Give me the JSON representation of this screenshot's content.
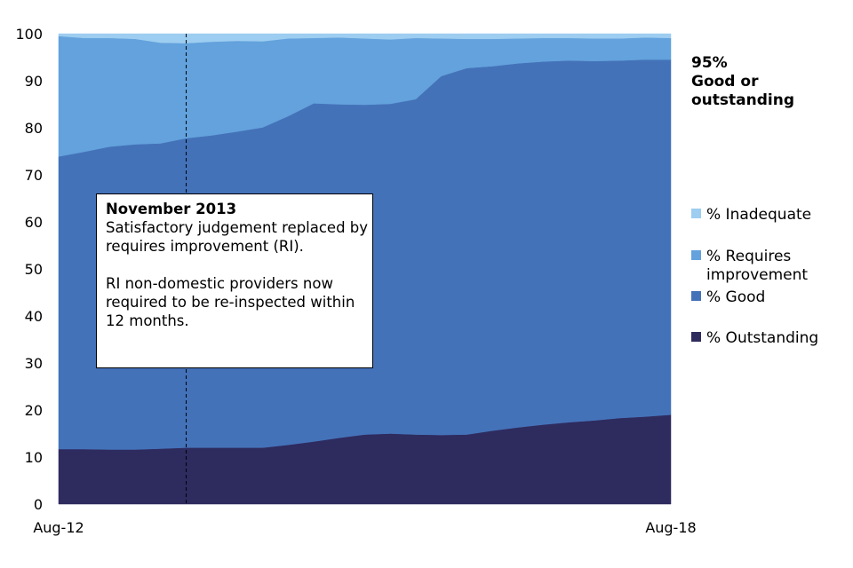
{
  "chart_data": {
    "type": "area",
    "stacked": true,
    "x": [
      "Aug-12",
      "Nov-12",
      "Feb-13",
      "May-13",
      "Aug-13",
      "Nov-13",
      "Feb-14",
      "May-14",
      "Aug-14",
      "Nov-14",
      "Feb-15",
      "May-15",
      "Aug-15",
      "Nov-15",
      "Feb-16",
      "May-16",
      "Aug-16",
      "Nov-16",
      "Feb-17",
      "May-17",
      "Aug-17",
      "Nov-17",
      "Feb-18",
      "May-18",
      "Aug-18"
    ],
    "x_tick_labels": [
      "Aug-12",
      "Aug-18"
    ],
    "ylim": [
      0,
      100
    ],
    "y_ticks": [
      0,
      10,
      20,
      30,
      40,
      50,
      60,
      70,
      80,
      90,
      100
    ],
    "series": [
      {
        "name": "% Outstanding",
        "color": "#2e2b5f",
        "values": [
          11.7,
          11.7,
          11.6,
          11.6,
          11.8,
          12.0,
          12.0,
          12.0,
          12.0,
          12.6,
          13.3,
          14.1,
          14.8,
          15.0,
          14.8,
          14.7,
          14.8,
          15.6,
          16.3,
          16.9,
          17.4,
          17.8,
          18.3,
          18.6,
          19.0
        ]
      },
      {
        "name": "% Good",
        "color": "#4472b9",
        "values": [
          62.2,
          63.2,
          64.4,
          64.9,
          64.9,
          65.8,
          66.4,
          67.2,
          68.1,
          69.9,
          71.9,
          70.9,
          70.1,
          70.1,
          71.3,
          76.3,
          77.9,
          77.5,
          77.4,
          77.2,
          76.9,
          76.4,
          76.0,
          75.9,
          75.5
        ]
      },
      {
        "name": "% Requires improvement",
        "color": "#63a2dc",
        "values": [
          25.6,
          24.2,
          23.1,
          22.4,
          21.4,
          20.2,
          19.9,
          19.3,
          18.3,
          16.5,
          13.9,
          14.2,
          14.1,
          13.7,
          13.0,
          8.0,
          6.2,
          5.8,
          5.3,
          5.0,
          4.8,
          4.8,
          4.7,
          4.7,
          4.6
        ]
      },
      {
        "name": "% Inadequate",
        "color": "#9dcdf1",
        "values": [
          0.5,
          0.9,
          0.9,
          1.1,
          1.9,
          2.0,
          1.7,
          1.5,
          1.6,
          1.0,
          0.9,
          0.8,
          1.0,
          1.2,
          0.9,
          1.0,
          1.1,
          1.1,
          1.0,
          0.9,
          0.9,
          1.0,
          1.0,
          0.8,
          0.9
        ]
      }
    ],
    "reference_line": {
      "x": "Nov-13",
      "style": "dashed"
    },
    "callout": {
      "title": "November 2013",
      "line1": "Satisfactory judgement replaced by requires improvement (RI).",
      "line2": "RI non-domestic providers now required to be re-inspected within 12 months."
    },
    "end_annotation": {
      "value": "95%",
      "line1": "Good or",
      "line2": "outstanding"
    },
    "legend": {
      "placement": "right",
      "items": [
        {
          "label": "% Inadequate",
          "color": "#9dcdf1"
        },
        {
          "label": "% Requires improvement",
          "color": "#63a2dc"
        },
        {
          "label": "% Good",
          "color": "#4472b9"
        },
        {
          "label": "% Outstanding",
          "color": "#2e2b5f"
        }
      ]
    }
  }
}
